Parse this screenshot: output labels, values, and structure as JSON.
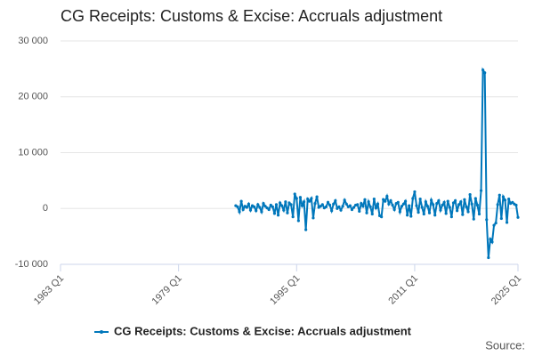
{
  "chart_data": {
    "type": "line",
    "title": "CG Receipts: Customs & Excise: Accruals adjustment",
    "source": "Source:",
    "categories": [
      "1963 Q1",
      null,
      null,
      null,
      null,
      null,
      null,
      null,
      null,
      null,
      null,
      null,
      null,
      null,
      null,
      null,
      null,
      null,
      null,
      null,
      null,
      null,
      null,
      null,
      null,
      null,
      null,
      null,
      null,
      null,
      null,
      null,
      null,
      null,
      null,
      null,
      null,
      null,
      null,
      null,
      null,
      null,
      null,
      null,
      null,
      null,
      null,
      null,
      null,
      null,
      null,
      null,
      null,
      null,
      null,
      null,
      null,
      null,
      null,
      null,
      null,
      null,
      null,
      null,
      "1979 Q1",
      null,
      null,
      null,
      null,
      null,
      null,
      null,
      null,
      null,
      null,
      null,
      null,
      null,
      null,
      null,
      null,
      null,
      null,
      null,
      null,
      null,
      null,
      null,
      null,
      null,
      null,
      null,
      null,
      null,
      null,
      null,
      null,
      null,
      null,
      null,
      null,
      null,
      null,
      null,
      null,
      null,
      null,
      null,
      null,
      null,
      null,
      null,
      null,
      null,
      null,
      null,
      null,
      null,
      null,
      null,
      null,
      null,
      null,
      null,
      null,
      null,
      null,
      null,
      "1995 Q1",
      null,
      null,
      null,
      null,
      null,
      null,
      null,
      null,
      null,
      null,
      null,
      null,
      null,
      null,
      null,
      null,
      null,
      null,
      null,
      null,
      null,
      null,
      null,
      null,
      null,
      null,
      null,
      null,
      null,
      null,
      null,
      null,
      null,
      null,
      null,
      null,
      null,
      null,
      null,
      null,
      null,
      null,
      null,
      null,
      null,
      null,
      null,
      null,
      null,
      null,
      null,
      null,
      null,
      null,
      null,
      null,
      null,
      null,
      null,
      null,
      null,
      null,
      null,
      "2011 Q1",
      null,
      null,
      null,
      null,
      null,
      null,
      null,
      null,
      null,
      null,
      null,
      null,
      null,
      null,
      null,
      null,
      null,
      null,
      null,
      null,
      null,
      null,
      null,
      null,
      null,
      null,
      null,
      null,
      null,
      null,
      null,
      null,
      null,
      null,
      null,
      null,
      null,
      null,
      null,
      null,
      null,
      null,
      null,
      null,
      null,
      null,
      null,
      null,
      null,
      null,
      null,
      null,
      null,
      null,
      null,
      "2025 Q1"
    ],
    "series": [
      {
        "name": "CG Receipts: Customs & Excise: Accruals adjustment",
        "color": "#0077bb",
        "values": [
          null,
          null,
          null,
          null,
          null,
          null,
          null,
          null,
          null,
          null,
          null,
          null,
          null,
          null,
          null,
          null,
          null,
          null,
          null,
          null,
          null,
          null,
          null,
          null,
          null,
          null,
          null,
          null,
          null,
          null,
          null,
          null,
          null,
          null,
          null,
          null,
          null,
          null,
          null,
          null,
          null,
          null,
          null,
          null,
          null,
          null,
          null,
          null,
          null,
          null,
          null,
          null,
          null,
          null,
          null,
          null,
          null,
          null,
          null,
          null,
          null,
          null,
          null,
          null,
          null,
          null,
          null,
          null,
          null,
          null,
          null,
          null,
          null,
          null,
          null,
          null,
          null,
          null,
          null,
          null,
          null,
          null,
          null,
          null,
          null,
          null,
          null,
          null,
          null,
          null,
          null,
          null,
          null,
          null,
          null,
          500,
          300,
          -600,
          1300,
          -200,
          400,
          200,
          800,
          -300,
          500,
          300,
          -400,
          700,
          200,
          -600,
          900,
          400,
          100,
          -200,
          600,
          300,
          -900,
          700,
          -1200,
          1000,
          500,
          -300,
          1200,
          -800,
          1000,
          700,
          -1500,
          2600,
          1800,
          -2200,
          2000,
          500,
          1200,
          -3800,
          1700,
          1300,
          1800,
          -1700,
          900,
          2100,
          200,
          400,
          700,
          100,
          300,
          1100,
          600,
          -400,
          800,
          1400,
          0,
          300,
          -300,
          400,
          1500,
          800,
          300,
          500,
          -200,
          200,
          600,
          700,
          -500,
          900,
          400,
          1600,
          -800,
          1200,
          300,
          -1000,
          1700,
          100,
          800,
          -1300,
          -1500,
          1600,
          1300,
          2200,
          800,
          1400,
          600,
          -200,
          900,
          1100,
          -600,
          400,
          800,
          1300,
          -1200,
          500,
          -1400,
          1800,
          3000,
          500,
          -700,
          1700,
          200,
          -1000,
          1200,
          400,
          -800,
          1500,
          700,
          -1200,
          900,
          1400,
          -300,
          600,
          1100,
          -900,
          1300,
          200,
          -1500,
          1000,
          1400,
          -400,
          700,
          1200,
          -1100,
          1600,
          300,
          -600,
          2500,
          800,
          -1900,
          1800,
          600,
          -1000,
          3200,
          24800,
          24300,
          -2000,
          -8800,
          -5500,
          -6000,
          -3000,
          -2600,
          700,
          2400,
          -1800,
          2100,
          1500,
          -2500,
          1700,
          900,
          1100,
          800,
          600,
          -1600
        ]
      }
    ],
    "ylim": [
      -10000,
      30000
    ],
    "yticks": [
      {
        "value": -10000,
        "label": "-10 000"
      },
      0,
      {
        "value": 10000,
        "label": "10 000"
      },
      {
        "value": 20000,
        "label": "20 000"
      },
      {
        "value": 30000,
        "label": "30 000"
      }
    ],
    "grid": true
  }
}
